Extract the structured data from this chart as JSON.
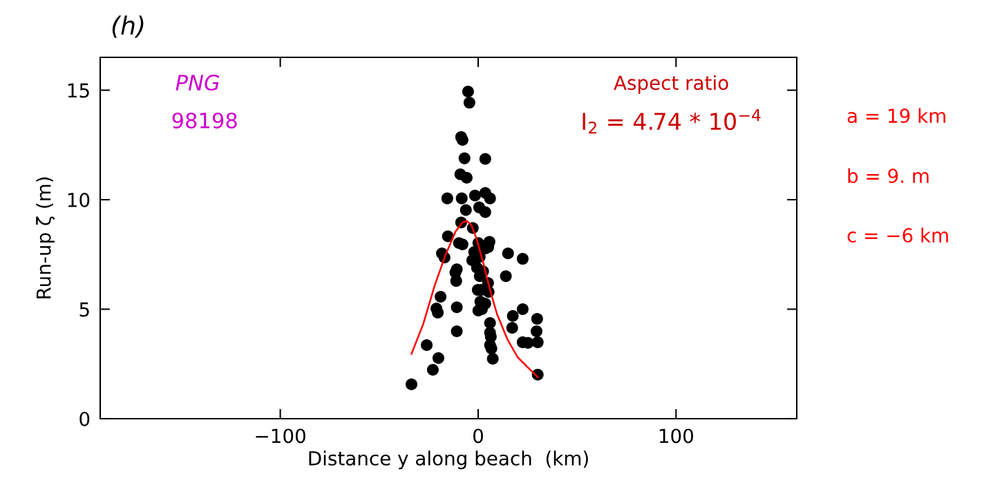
{
  "chart_data": {
    "type": "scatter",
    "title": "(h)",
    "xlabel": "Distance y along beach  (km)",
    "ylabel": "Run-up ζ (m)",
    "xlim": [
      -191,
      161
    ],
    "ylim": [
      0,
      16.5
    ],
    "xticks": [
      {
        "value": -100,
        "label": "−100"
      },
      0,
      100
    ],
    "yticks": [
      0,
      5,
      10,
      15
    ],
    "grid": false,
    "annotations": [
      "PNG",
      "98198",
      "Aspect ratio",
      "I$_{2}$ = 4.74 * 10$^{−4}$",
      "a = 19 km",
      "b = 9. m",
      "c = −6 km"
    ],
    "series": [
      {
        "color": "#000000",
        "marker": "circle",
        "x": [
          -5.1,
          -4.4,
          -8.6,
          -7.9,
          -6.9,
          3.6,
          -9,
          -5.8,
          -15.6,
          -8.3,
          -1.6,
          3.6,
          6,
          -6.2,
          3.6,
          0.5,
          -8.6,
          -2.7,
          -15.3,
          -9.7,
          -7.9,
          0.1,
          5.7,
          -18.3,
          -17,
          -3,
          3.6,
          5.1,
          15.1,
          22.5,
          -10.8,
          -11.5,
          -11.1,
          -0.6,
          0.8,
          14,
          1.5,
          5,
          -0.2,
          1.1,
          0.1,
          1.9,
          3.6,
          -19,
          -21.1,
          -20.4,
          -10.8,
          17.5,
          22.5,
          29.8,
          6,
          -10.8,
          6,
          6.4,
          17.2,
          29.5,
          6,
          6.7,
          22.5,
          25.2,
          30.1,
          -26,
          7.4,
          -20.1,
          -22.9,
          30.1,
          -33.7,
          -2,
          0.8,
          2.5,
          5.3
        ],
        "values": [
          14.94,
          14.43,
          12.86,
          12.73,
          11.89,
          11.86,
          11.16,
          11.0,
          10.06,
          10.06,
          10.19,
          10.31,
          10.06,
          9.53,
          9.43,
          9.65,
          8.96,
          8.71,
          8.33,
          8.02,
          7.96,
          8.02,
          8.08,
          7.55,
          7.36,
          7.23,
          7.77,
          7.83,
          7.55,
          7.3,
          6.82,
          6.67,
          6.29,
          6.89,
          6.51,
          6.51,
          5.88,
          6.2,
          5.88,
          5.35,
          4.94,
          5.0,
          5.25,
          5.57,
          5.03,
          4.84,
          5.09,
          4.69,
          5.0,
          4.56,
          4.37,
          3.99,
          3.93,
          3.74,
          4.15,
          3.99,
          3.36,
          3.2,
          3.49,
          3.46,
          3.49,
          3.36,
          2.74,
          2.77,
          2.23,
          2.01,
          1.57,
          7.61,
          7.39,
          6.73,
          5.79
        ]
      },
      {
        "type": "line",
        "color": "#ff0000",
        "marker": "none",
        "x": [
          -33.7,
          -27.8,
          -21.9,
          -16.6,
          -11.4,
          -7.9,
          -5.8,
          -3.4,
          -0.9,
          2.5,
          6,
          9.5,
          14.8,
          20,
          25.2,
          30.1
        ],
        "values": [
          2.96,
          4.31,
          6.1,
          7.45,
          8.55,
          8.96,
          9.03,
          8.84,
          8.24,
          7.14,
          5.88,
          4.78,
          3.62,
          2.8,
          2.33,
          1.89
        ]
      }
    ]
  }
}
